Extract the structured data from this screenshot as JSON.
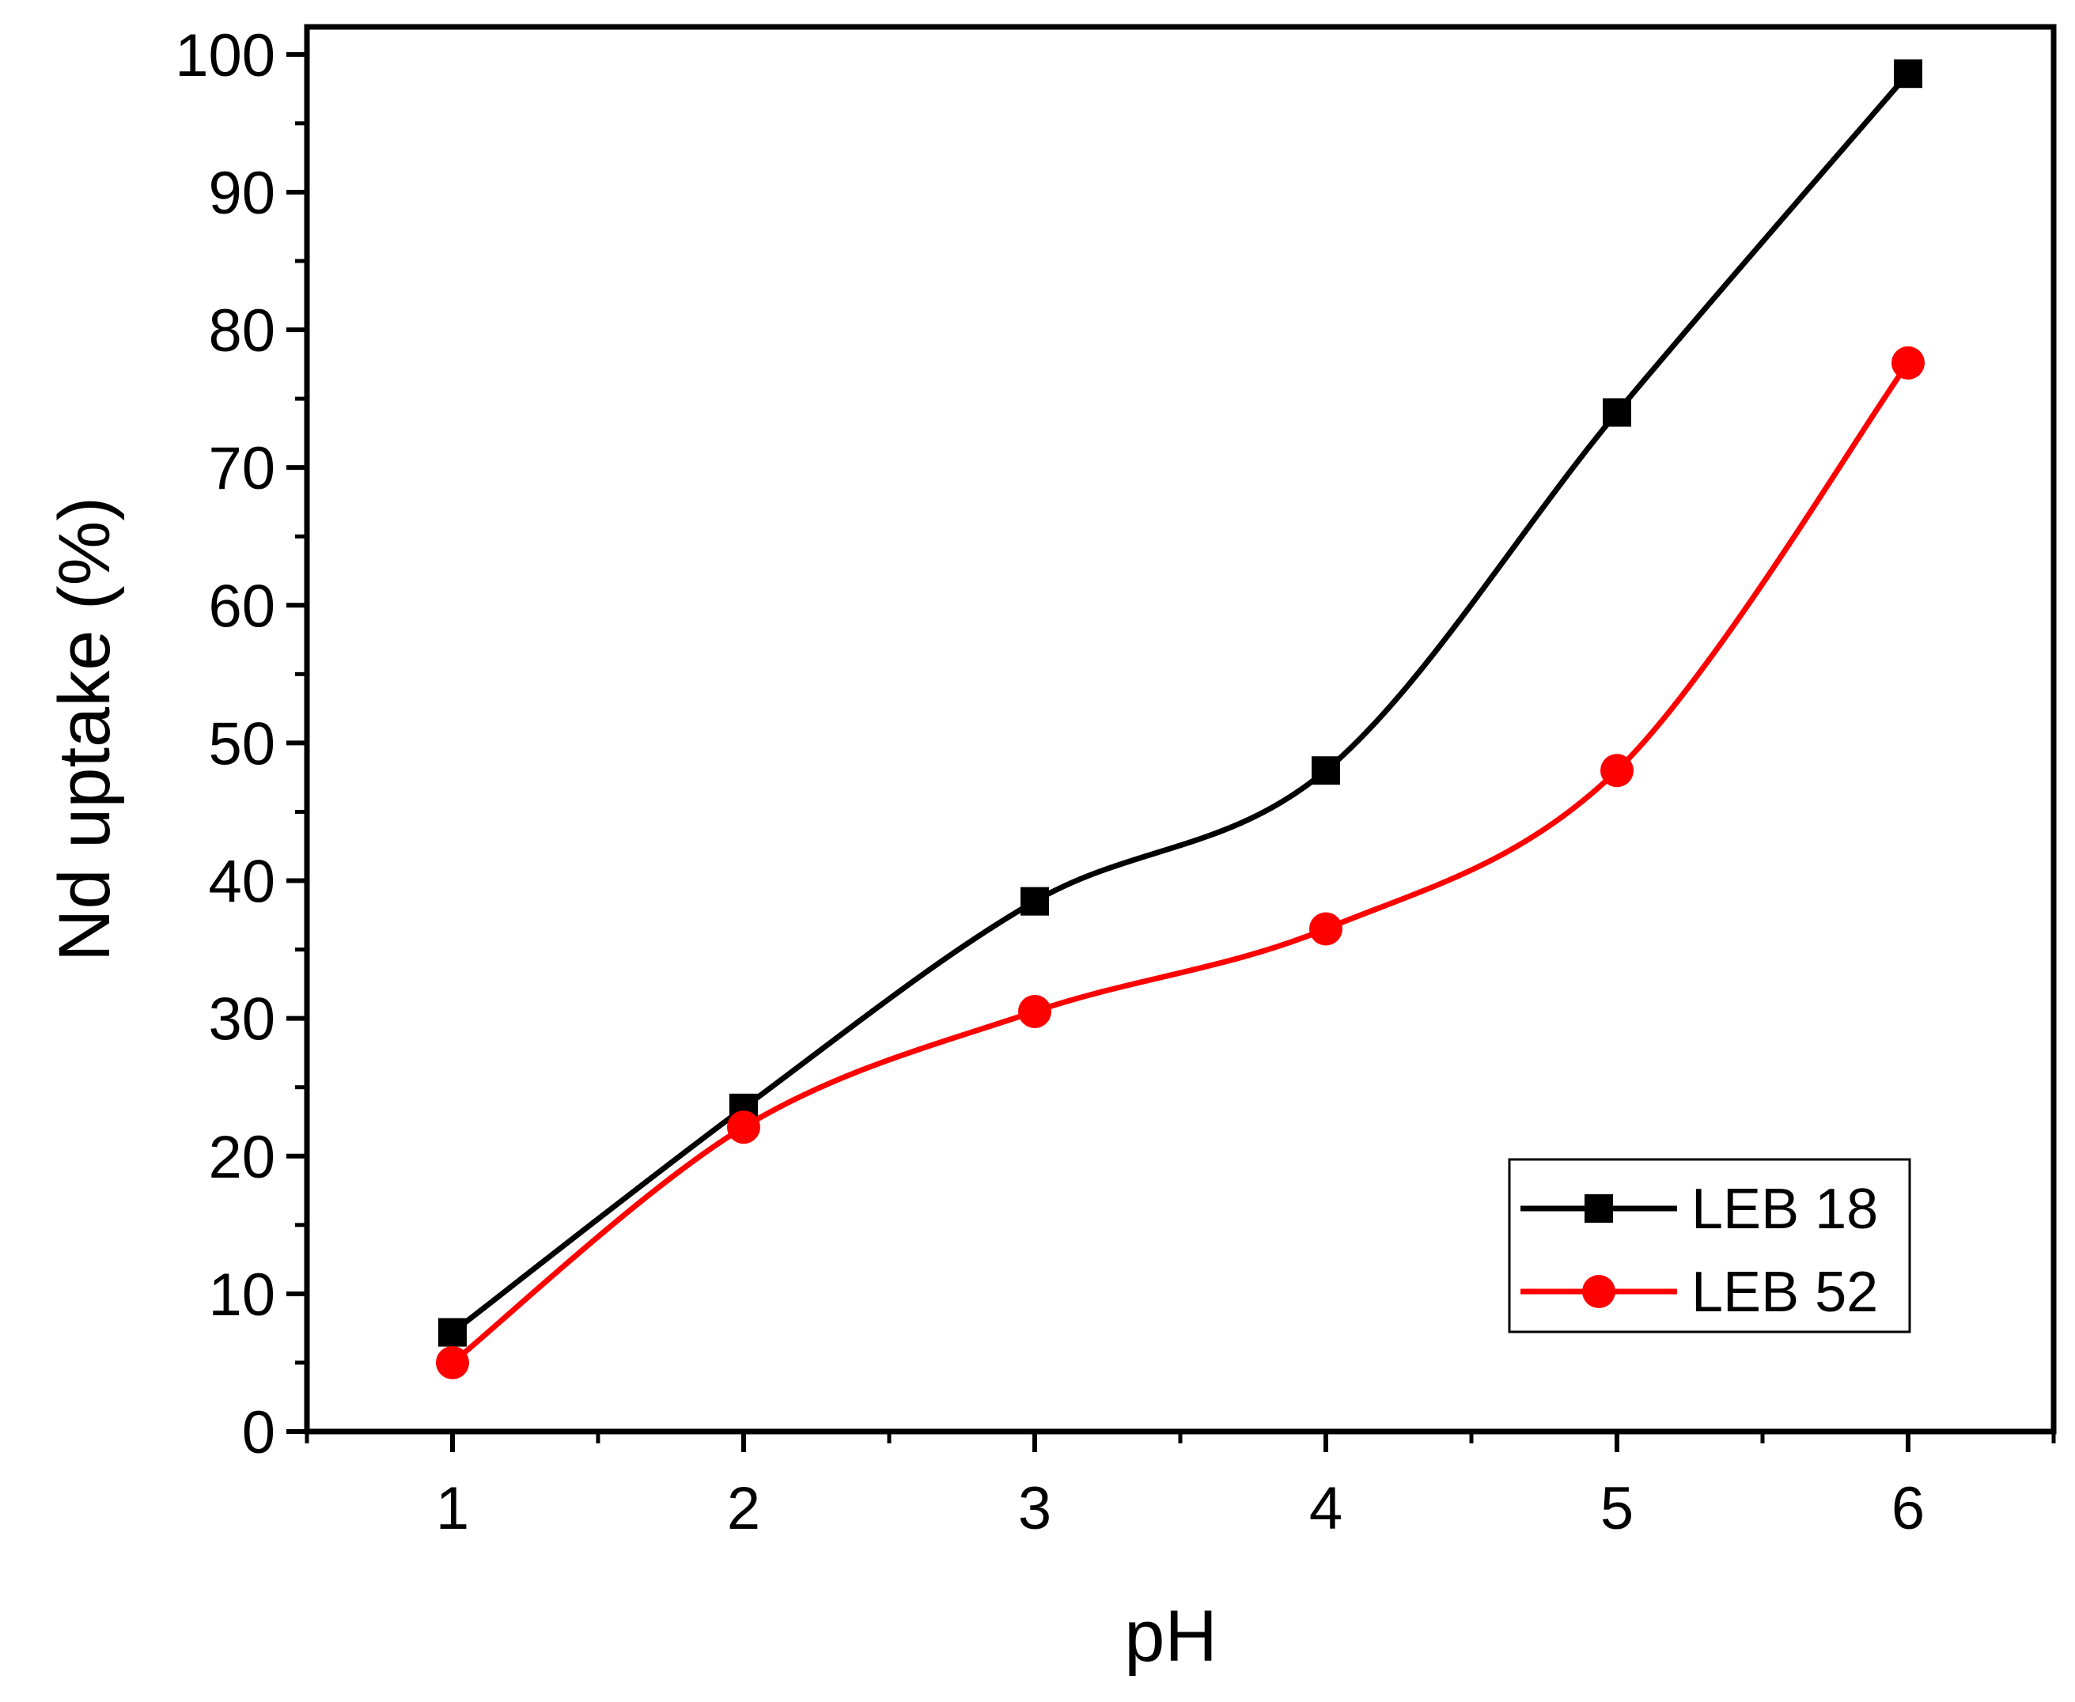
{
  "chart_data": {
    "type": "line",
    "title": "",
    "xlabel": "pH",
    "ylabel": "Nd uptake (%)",
    "x": [
      1,
      2,
      3,
      4,
      5,
      6
    ],
    "xlim": [
      0.5,
      6.5
    ],
    "ylim": [
      0,
      102
    ],
    "x_ticks": [
      "1",
      "2",
      "3",
      "4",
      "5",
      "6"
    ],
    "y_ticks": [
      "0",
      "10",
      "20",
      "30",
      "40",
      "50",
      "60",
      "70",
      "80",
      "90",
      "100"
    ],
    "grid": false,
    "legend_position": "bottom-right",
    "series": [
      {
        "name": "LEB 18",
        "color": "#000000",
        "marker": "square",
        "values": [
          7.2,
          23.5,
          38.5,
          48.0,
          74.0,
          98.6
        ]
      },
      {
        "name": "LEB 52",
        "color": "#ff0000",
        "marker": "circle",
        "values": [
          5.0,
          22.1,
          30.5,
          36.5,
          48.0,
          77.6
        ]
      }
    ]
  }
}
